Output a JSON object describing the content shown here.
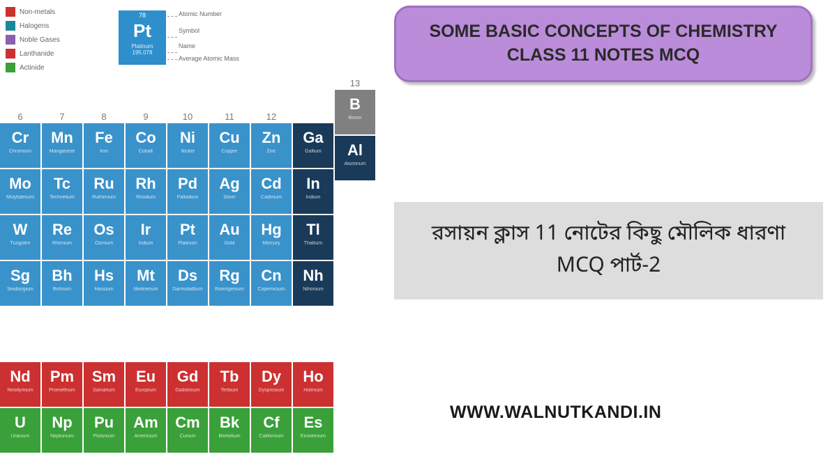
{
  "legend": {
    "items": [
      {
        "label": "Non-metals",
        "color": "#cc3030"
      },
      {
        "label": "Halogens",
        "color": "#1a8896"
      },
      {
        "label": "Noble Gases",
        "color": "#8a60b0"
      },
      {
        "label": "Lanthanide",
        "color": "#cc3030"
      },
      {
        "label": "Actinide",
        "color": "#3aa03a"
      }
    ]
  },
  "example": {
    "atomic_num": "78",
    "symbol": "Pt",
    "name": "Platinum",
    "mass": "195.078",
    "labels": {
      "atomic": "Atomic Number",
      "symbol": "Symbol",
      "name": "Name",
      "mass": "Average Atomic Mass"
    }
  },
  "col13": {
    "header": "13",
    "elements": [
      {
        "sym": "B",
        "name": "Boron",
        "color_class": "c-grey"
      },
      {
        "sym": "Al",
        "name": "Aluminum",
        "color_class": "c-darkblue"
      }
    ]
  },
  "group_headers": [
    "6",
    "7",
    "8",
    "9",
    "10",
    "11",
    "12"
  ],
  "main_rows": [
    [
      {
        "sym": "Cr",
        "name": "Chromium",
        "cc": "c-blue"
      },
      {
        "sym": "Mn",
        "name": "Manganese",
        "cc": "c-blue"
      },
      {
        "sym": "Fe",
        "name": "Iron",
        "cc": "c-blue"
      },
      {
        "sym": "Co",
        "name": "Cobalt",
        "cc": "c-blue"
      },
      {
        "sym": "Ni",
        "name": "Nickel",
        "cc": "c-blue"
      },
      {
        "sym": "Cu",
        "name": "Copper",
        "cc": "c-blue"
      },
      {
        "sym": "Zn",
        "name": "Zinc",
        "cc": "c-blue"
      },
      {
        "sym": "Ga",
        "name": "Gallium",
        "cc": "c-darkblue"
      }
    ],
    [
      {
        "sym": "Mo",
        "name": "Molybdenum",
        "cc": "c-blue"
      },
      {
        "sym": "Tc",
        "name": "Technetium",
        "cc": "c-blue"
      },
      {
        "sym": "Ru",
        "name": "Ruthenium",
        "cc": "c-blue"
      },
      {
        "sym": "Rh",
        "name": "Rhodium",
        "cc": "c-blue"
      },
      {
        "sym": "Pd",
        "name": "Palladium",
        "cc": "c-blue"
      },
      {
        "sym": "Ag",
        "name": "Silver",
        "cc": "c-blue"
      },
      {
        "sym": "Cd",
        "name": "Cadmium",
        "cc": "c-blue"
      },
      {
        "sym": "In",
        "name": "Indium",
        "cc": "c-darkblue"
      }
    ],
    [
      {
        "sym": "W",
        "name": "Tungsten",
        "cc": "c-blue"
      },
      {
        "sym": "Re",
        "name": "Rhenium",
        "cc": "c-blue"
      },
      {
        "sym": "Os",
        "name": "Osmium",
        "cc": "c-blue"
      },
      {
        "sym": "Ir",
        "name": "Iridium",
        "cc": "c-blue"
      },
      {
        "sym": "Pt",
        "name": "Platinum",
        "cc": "c-blue"
      },
      {
        "sym": "Au",
        "name": "Gold",
        "cc": "c-blue"
      },
      {
        "sym": "Hg",
        "name": "Mercury",
        "cc": "c-blue"
      },
      {
        "sym": "Tl",
        "name": "Thallium",
        "cc": "c-darkblue"
      }
    ],
    [
      {
        "sym": "Sg",
        "name": "Seaborgium",
        "cc": "c-blue"
      },
      {
        "sym": "Bh",
        "name": "Bohrium",
        "cc": "c-blue"
      },
      {
        "sym": "Hs",
        "name": "Hassium",
        "cc": "c-blue"
      },
      {
        "sym": "Mt",
        "name": "Meitnerium",
        "cc": "c-blue"
      },
      {
        "sym": "Ds",
        "name": "Darmstadtium",
        "cc": "c-blue"
      },
      {
        "sym": "Rg",
        "name": "Roentgenium",
        "cc": "c-blue"
      },
      {
        "sym": "Cn",
        "name": "Copernicium",
        "cc": "c-blue"
      },
      {
        "sym": "Nh",
        "name": "Nihonium",
        "cc": "c-darkblue"
      }
    ]
  ],
  "f_block": [
    [
      {
        "sym": "Nd",
        "name": "Neodymium",
        "cc": "c-red"
      },
      {
        "sym": "Pm",
        "name": "Promethium",
        "cc": "c-red"
      },
      {
        "sym": "Sm",
        "name": "Samarium",
        "cc": "c-red"
      },
      {
        "sym": "Eu",
        "name": "Europium",
        "cc": "c-red"
      },
      {
        "sym": "Gd",
        "name": "Gadolinium",
        "cc": "c-red"
      },
      {
        "sym": "Tb",
        "name": "Terbium",
        "cc": "c-red"
      },
      {
        "sym": "Dy",
        "name": "Dysprosium",
        "cc": "c-red"
      },
      {
        "sym": "Ho",
        "name": "Holmium",
        "cc": "c-red"
      }
    ],
    [
      {
        "sym": "U",
        "name": "Uranium",
        "cc": "c-green"
      },
      {
        "sym": "Np",
        "name": "Neptunium",
        "cc": "c-green"
      },
      {
        "sym": "Pu",
        "name": "Plutonium",
        "cc": "c-green"
      },
      {
        "sym": "Am",
        "name": "Americium",
        "cc": "c-green"
      },
      {
        "sym": "Cm",
        "name": "Curium",
        "cc": "c-green"
      },
      {
        "sym": "Bk",
        "name": "Berkelium",
        "cc": "c-green"
      },
      {
        "sym": "Cf",
        "name": "Californium",
        "cc": "c-green"
      },
      {
        "sym": "Es",
        "name": "Einsteinium",
        "cc": "c-green"
      }
    ]
  ],
  "title": "SOME BASIC CONCEPTS OF CHEMISTRY CLASS 11 NOTES MCQ",
  "subtitle": "রসায়ন ক্লাস 11 নোটের কিছু মৌলিক ধারণা MCQ পার্ট-2",
  "website": "WWW.WALNUTKANDI.IN"
}
